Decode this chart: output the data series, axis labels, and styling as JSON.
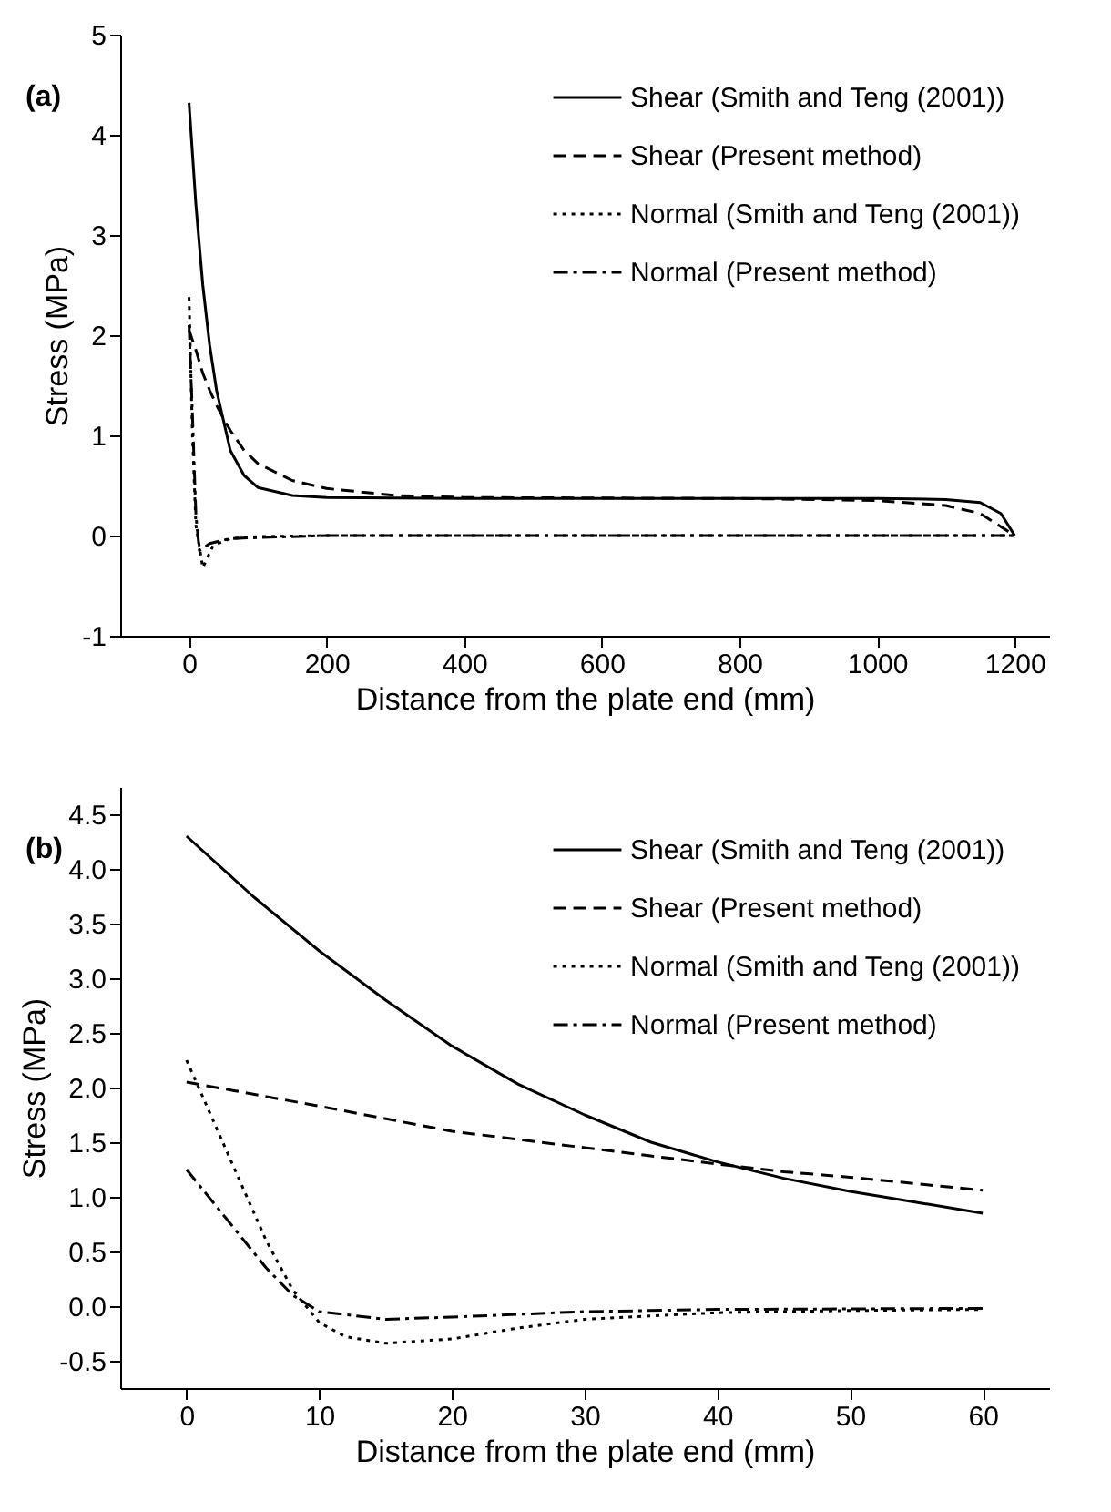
{
  "chart_data": [
    {
      "type": "line",
      "xlabel": "Distance from the plate end (mm)",
      "ylabel": "Stress (MPa)",
      "annotations": [
        "(a)"
      ],
      "xlim": [
        -100,
        1250
      ],
      "ylim": [
        -1,
        5
      ],
      "xticks": [
        0,
        200,
        400,
        600,
        800,
        1000,
        1200
      ],
      "yticks": [
        -1,
        0,
        1,
        2,
        3,
        4,
        5
      ],
      "legend": "top right",
      "series": [
        {
          "name": "Shear  (Smith and Teng (2001))",
          "color": "#000000",
          "line_style": "solid",
          "x": [
            0,
            10,
            20,
            30,
            40,
            50,
            60,
            80,
            100,
            150,
            200,
            400,
            800,
            1000,
            1100,
            1150,
            1180,
            1200
          ],
          "values": [
            4.32,
            3.3,
            2.5,
            1.9,
            1.45,
            1.15,
            0.85,
            0.6,
            0.48,
            0.4,
            0.38,
            0.37,
            0.37,
            0.37,
            0.36,
            0.33,
            0.22,
            0
          ]
        },
        {
          "name": "Shear  (Present method)",
          "color": "#000000",
          "line_style": "dashed",
          "x": [
            0,
            10,
            20,
            30,
            40,
            50,
            60,
            80,
            100,
            150,
            200,
            300,
            400,
            800,
            1000,
            1100,
            1150,
            1200
          ],
          "values": [
            2.05,
            1.85,
            1.62,
            1.45,
            1.3,
            1.17,
            1.05,
            0.85,
            0.72,
            0.55,
            0.47,
            0.4,
            0.38,
            0.37,
            0.35,
            0.3,
            0.22,
            0
          ]
        },
        {
          "name": "Normal (Smith and Teng (2001))",
          "color": "#000000",
          "line_style": "dotted",
          "x": [
            0,
            5,
            10,
            20,
            35,
            60,
            100,
            200,
            1200
          ],
          "values": [
            2.38,
            1.0,
            0.1,
            -0.32,
            -0.1,
            -0.03,
            -0.01,
            0,
            0
          ]
        },
        {
          "name": "Normal (Present method)",
          "color": "#000000",
          "line_style": "dashdot",
          "x": [
            0,
            5,
            10,
            15,
            30,
            60,
            100,
            200,
            1200
          ],
          "values": [
            2.1,
            1.2,
            0.2,
            -0.15,
            -0.08,
            -0.03,
            -0.02,
            0,
            0
          ]
        }
      ]
    },
    {
      "type": "line",
      "xlabel": "Distance from the plate end (mm)",
      "ylabel": "Stress (MPa)",
      "annotations": [
        "(b)"
      ],
      "xlim": [
        -5,
        65
      ],
      "ylim": [
        -0.75,
        4.75
      ],
      "xticks": [
        0,
        10,
        20,
        30,
        40,
        50,
        60
      ],
      "yticks": [
        {
          "value": -0.5,
          "label": "-0.5"
        },
        {
          "value": 0,
          "label": "0.0"
        },
        {
          "value": 0.5,
          "label": "0.5"
        },
        {
          "value": 1,
          "label": "1.0"
        },
        {
          "value": 1.5,
          "label": "1.5"
        },
        {
          "value": 2,
          "label": "2.0"
        },
        {
          "value": 2.5,
          "label": "2.5"
        },
        {
          "value": 3,
          "label": "3.0"
        },
        {
          "value": 3.5,
          "label": "3.5"
        },
        {
          "value": 4,
          "label": "4.0"
        },
        {
          "value": 4.5,
          "label": "4.5"
        }
      ],
      "legend": "top right",
      "series": [
        {
          "name": "Shear  (Smith and Teng (2001))",
          "color": "#000000",
          "line_style": "solid",
          "x": [
            0,
            5,
            10,
            15,
            20,
            25,
            30,
            35,
            40,
            45,
            50,
            55,
            60
          ],
          "values": [
            4.3,
            3.75,
            3.25,
            2.8,
            2.38,
            2.03,
            1.75,
            1.5,
            1.32,
            1.17,
            1.05,
            0.95,
            0.85
          ]
        },
        {
          "name": "Shear  (Present method)",
          "color": "#000000",
          "line_style": "dashed",
          "x": [
            0,
            10,
            20,
            30,
            40,
            45,
            50,
            60
          ],
          "values": [
            2.05,
            1.83,
            1.6,
            1.45,
            1.3,
            1.23,
            1.18,
            1.06
          ]
        },
        {
          "name": "Normal (Smith and Teng (2001))",
          "color": "#000000",
          "line_style": "dotted",
          "x": [
            0,
            2,
            4,
            6,
            8,
            10,
            12,
            15,
            20,
            25,
            30,
            40,
            50,
            60
          ],
          "values": [
            2.25,
            1.7,
            1.15,
            0.6,
            0.15,
            -0.15,
            -0.28,
            -0.34,
            -0.3,
            -0.2,
            -0.12,
            -0.06,
            -0.04,
            -0.03
          ]
        },
        {
          "name": "Normal (Present method)",
          "color": "#000000",
          "line_style": "dashdot",
          "x": [
            0,
            2,
            4,
            6,
            8,
            10,
            15,
            20,
            30,
            40,
            60
          ],
          "values": [
            1.25,
            0.95,
            0.65,
            0.35,
            0.1,
            -0.05,
            -0.12,
            -0.1,
            -0.05,
            -0.03,
            -0.02
          ]
        }
      ]
    }
  ]
}
